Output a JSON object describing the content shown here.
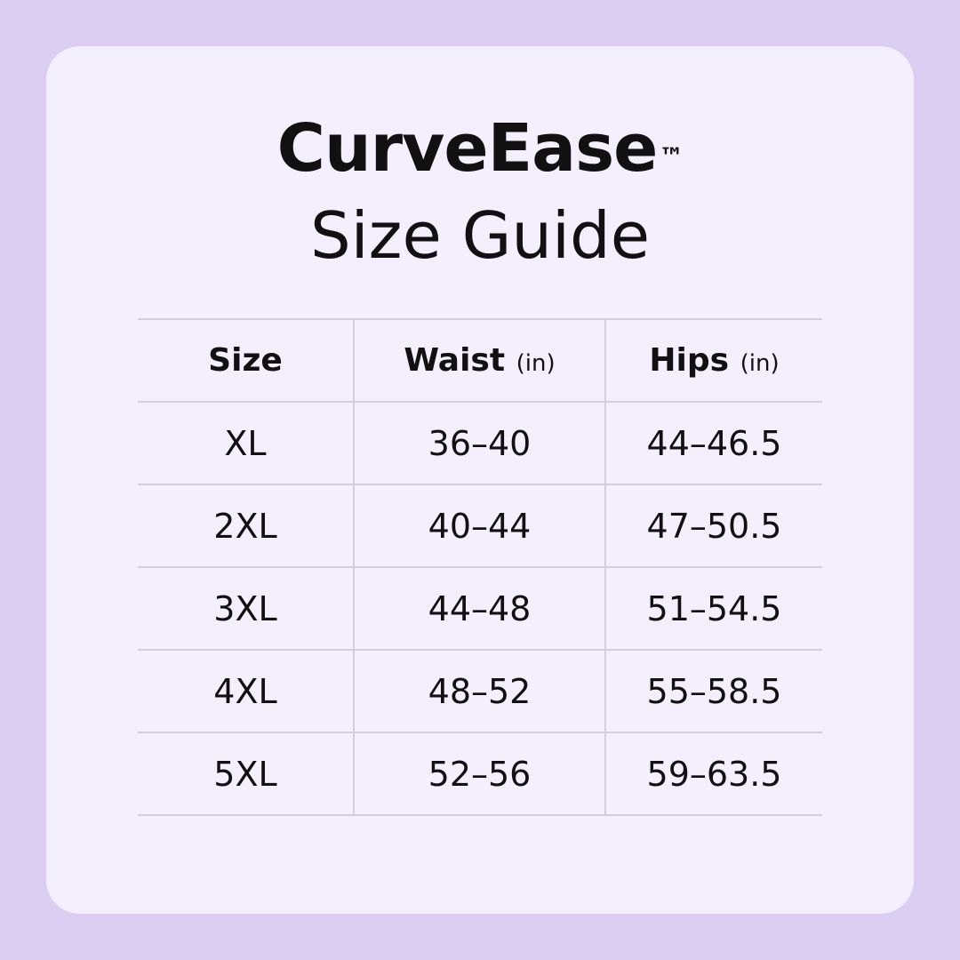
{
  "title": {
    "brand": "CurveEase",
    "trademark": "™",
    "subtitle": "Size Guide"
  },
  "table": {
    "headers": [
      {
        "label": "Size",
        "unit": ""
      },
      {
        "label": "Waist",
        "unit": "(in)"
      },
      {
        "label": "Hips",
        "unit": "(in)"
      }
    ],
    "rows": [
      [
        "XL",
        "36–40",
        "44–46.5"
      ],
      [
        "2XL",
        "40–44",
        "47–50.5"
      ],
      [
        "3XL",
        "44–48",
        "51–54.5"
      ],
      [
        "4XL",
        "48–52",
        "55–58.5"
      ],
      [
        "5XL",
        "52–56",
        "59–63.5"
      ]
    ]
  },
  "colors": {
    "background": "#dccdf2",
    "card": "#f4effd",
    "grid": "#d3cde0"
  }
}
